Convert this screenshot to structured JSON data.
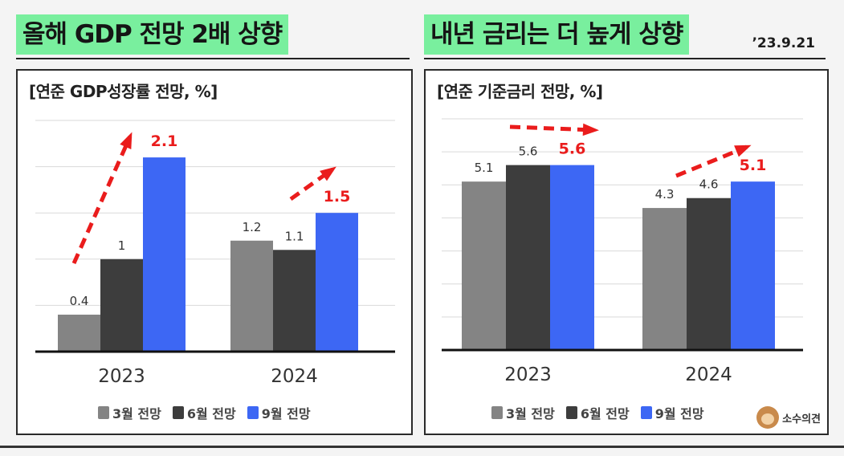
{
  "headline_left": "올해 GDP 전망 2배 상향",
  "headline_right": "내년 금리는 더 높게 상향",
  "date": "’23.9.21",
  "legend": [
    "3월 전망",
    "6월 전망",
    "9월 전망"
  ],
  "logo_text": "소수의견",
  "colors": {
    "mar": "#848484",
    "jun": "#3d3d3d",
    "sep": "#3d67f4",
    "arrow": "#ea1c1c",
    "highlight": "#79ef9e"
  },
  "chart_data": [
    {
      "type": "bar",
      "title": "[연준 GDP성장률 전망, %]",
      "categories": [
        "2023",
        "2024"
      ],
      "series": [
        {
          "name": "3월 전망",
          "values": [
            0.4,
            1.2
          ]
        },
        {
          "name": "6월 전망",
          "values": [
            1,
            1.1
          ]
        },
        {
          "name": "9월 전망",
          "values": [
            2.1,
            1.5
          ]
        }
      ],
      "value_labels": [
        [
          "0.4",
          "1",
          "2.1"
        ],
        [
          "1.2",
          "1.1",
          "1.5"
        ]
      ],
      "ylim": [
        0,
        2.5
      ],
      "grid": true,
      "legend_position": "bottom"
    },
    {
      "type": "bar",
      "title": "[연준 기준금리 전망, %]",
      "categories": [
        "2023",
        "2024"
      ],
      "series": [
        {
          "name": "3월 전망",
          "values": [
            5.1,
            4.3
          ]
        },
        {
          "name": "6월 전망",
          "values": [
            5.6,
            4.6
          ]
        },
        {
          "name": "9월 전망",
          "values": [
            5.6,
            5.1
          ]
        }
      ],
      "value_labels": [
        [
          "5.1",
          "5.6",
          "5.6"
        ],
        [
          "4.3",
          "4.6",
          "5.1"
        ]
      ],
      "ylim": [
        0,
        7
      ],
      "grid": true,
      "legend_position": "bottom"
    }
  ]
}
